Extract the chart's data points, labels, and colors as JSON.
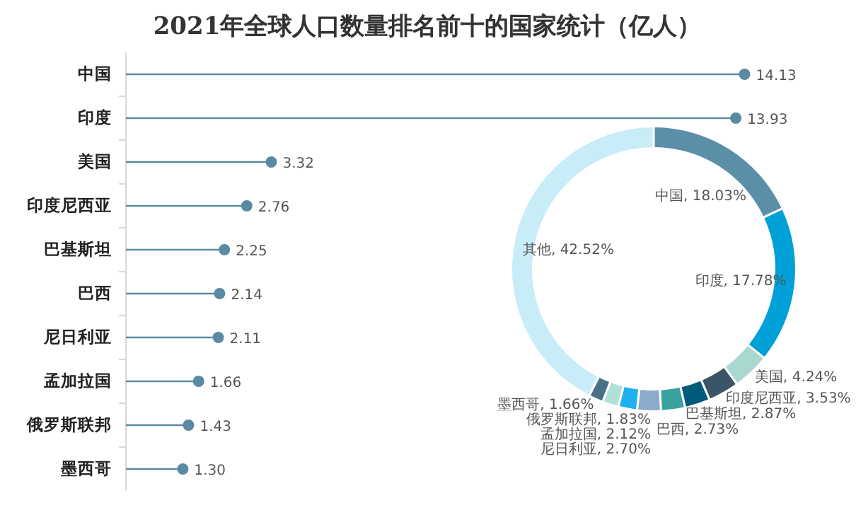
{
  "chart_data": [
    {
      "type": "lollipop",
      "title": "2021年全球人口数量排名前十的国家统计（亿人）",
      "orientation": "horizontal",
      "marker": "circle",
      "color": "#5a8aa3",
      "categories": [
        "中国",
        "印度",
        "美国",
        "印度尼西亚",
        "巴基斯坦",
        "巴西",
        "尼日利亚",
        "孟加拉国",
        "俄罗斯联邦",
        "墨西哥"
      ],
      "values": [
        14.13,
        13.93,
        3.32,
        2.76,
        2.25,
        2.14,
        2.11,
        1.66,
        1.43,
        1.3
      ],
      "value_labels": [
        "14.13",
        "13.93",
        "3.32",
        "2.76",
        "2.25",
        "2.14",
        "2.11",
        "1.66",
        "1.43",
        "1.30"
      ]
    },
    {
      "type": "donut",
      "value_labels": [
        ", 18.03%",
        ", 17.78%",
        ", 4.24%",
        ", 3.53%",
        ", 2.87%",
        ", 2.73%",
        ", 2.70%",
        ", 2.12%",
        ", 1.83%",
        ", 1.66%",
        ", 42.52%"
      ],
      "categories": [
        "中国",
        "印度",
        "美国",
        "印度尼西亚",
        "巴基斯坦",
        "巴西",
        "尼日利亚",
        "孟加拉国",
        "俄罗斯联邦",
        "墨西哥",
        "其他"
      ],
      "values": [
        18.03,
        17.78,
        4.24,
        3.53,
        2.87,
        2.73,
        2.7,
        2.12,
        1.83,
        1.66,
        42.52
      ],
      "colors": [
        "#5b8fa8",
        "#00a0d8",
        "#a8d8d0",
        "#3a5566",
        "#005a7a",
        "#3aa0a0",
        "#8aaccc",
        "#20b0f0",
        "#b0e0d8",
        "#4a7088",
        "#c8ecf8"
      ]
    }
  ]
}
